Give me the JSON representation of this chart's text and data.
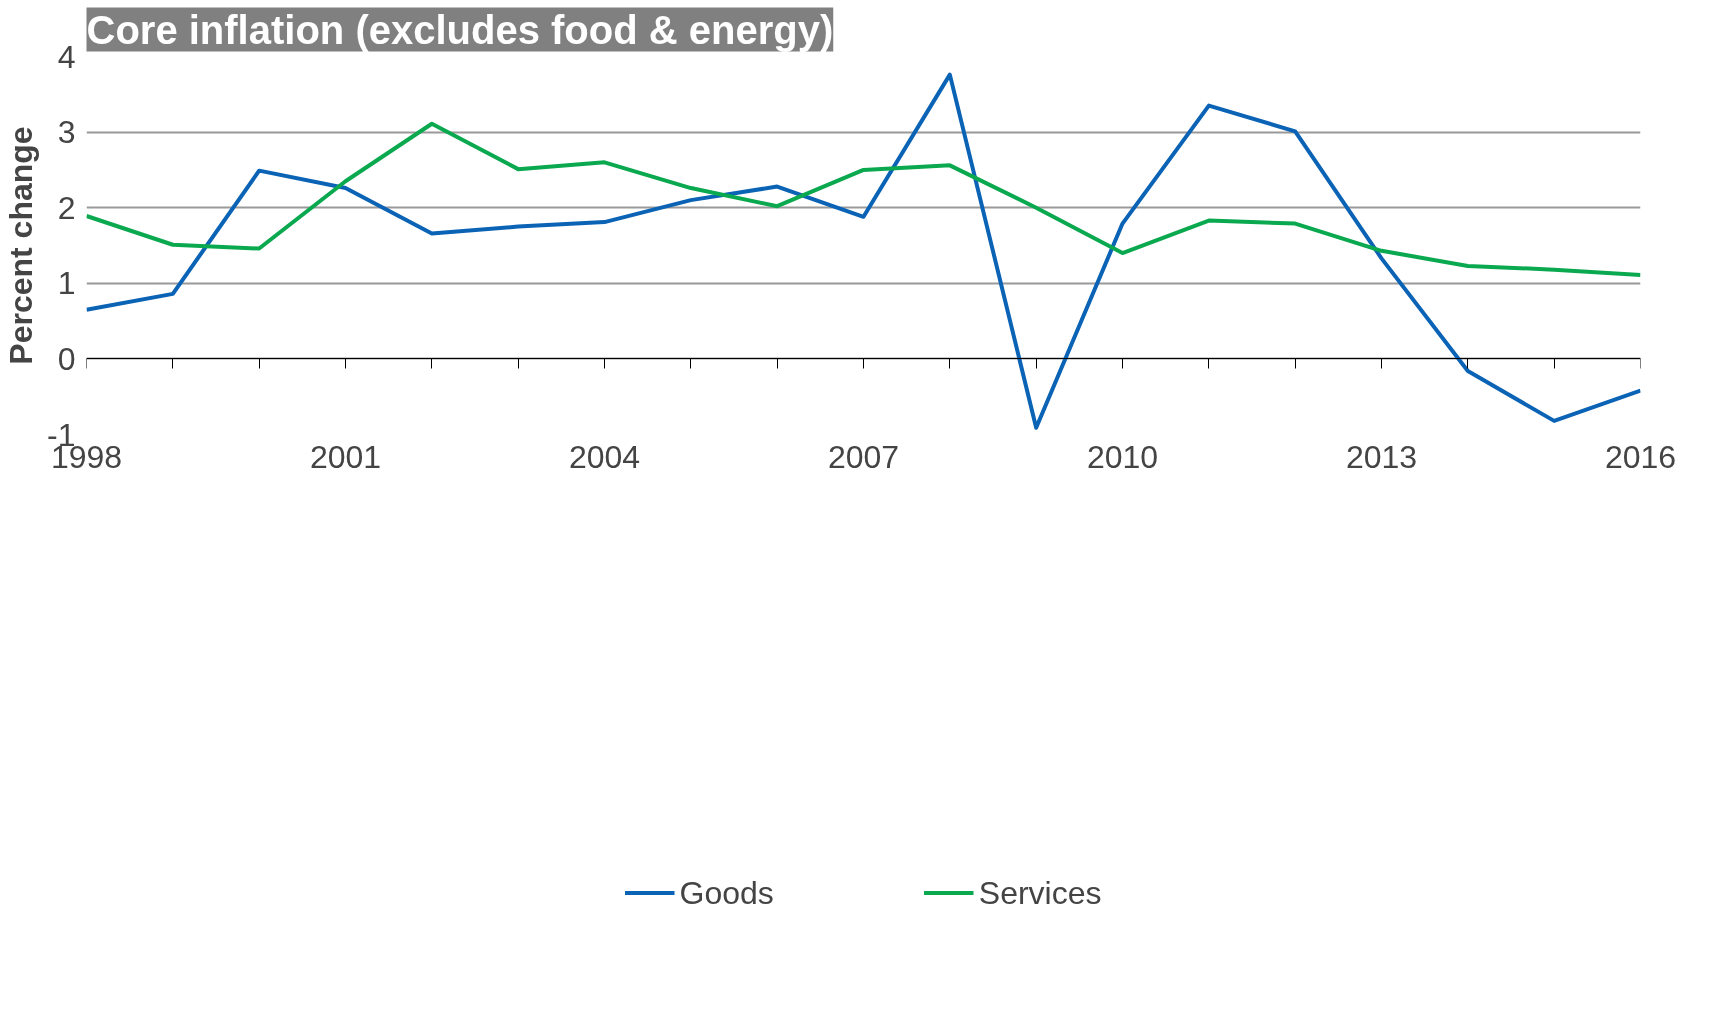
{
  "chart_data": {
    "type": "line",
    "title": "Core inflation (excludes food & energy)",
    "ylabel": "Percent change",
    "x": [
      1998,
      1999,
      2000,
      2001,
      2002,
      2003,
      2004,
      2005,
      2006,
      2007,
      2008,
      2009,
      2010,
      2011,
      2012,
      2013,
      2014,
      2015,
      2016
    ],
    "series": [
      {
        "name": "Goods",
        "color": "#0b63b5",
        "values": [
          0.65,
          0.86,
          2.49,
          2.26,
          1.66,
          1.75,
          1.81,
          2.1,
          2.28,
          1.88,
          3.76,
          -0.91,
          1.79,
          3.35,
          3.01,
          1.33,
          -0.16,
          -0.82,
          -0.42
        ]
      },
      {
        "name": "Services",
        "color": "#0aa84f",
        "values": [
          1.89,
          1.51,
          1.46,
          2.35,
          3.11,
          2.51,
          2.6,
          2.26,
          2.02,
          2.5,
          2.56,
          2.0,
          1.4,
          1.83,
          1.79,
          1.43,
          1.23,
          1.18,
          1.11
        ]
      }
    ],
    "xlim": [
      1998,
      2016
    ],
    "xticks": [
      1998,
      {
        "value": 1999,
        "label": null
      },
      {
        "value": 2000,
        "label": null
      },
      2001,
      {
        "value": 2002,
        "label": null
      },
      {
        "value": 2003,
        "label": null
      },
      2004,
      {
        "value": 2005,
        "label": null
      },
      {
        "value": 2006,
        "label": null
      },
      2007,
      {
        "value": 2008,
        "label": null
      },
      {
        "value": 2009,
        "label": null
      },
      2010,
      {
        "value": 2011,
        "label": null
      },
      {
        "value": 2012,
        "label": null
      },
      2013,
      {
        "value": 2014,
        "label": null
      },
      {
        "value": 2015,
        "label": null
      },
      2016
    ],
    "ylim": [
      -1,
      4
    ],
    "yticks": [
      -1,
      0,
      1,
      2,
      3,
      4
    ],
    "grid": "y",
    "legend": "bottom",
    "marker": "none",
    "line_style": "solid"
  }
}
